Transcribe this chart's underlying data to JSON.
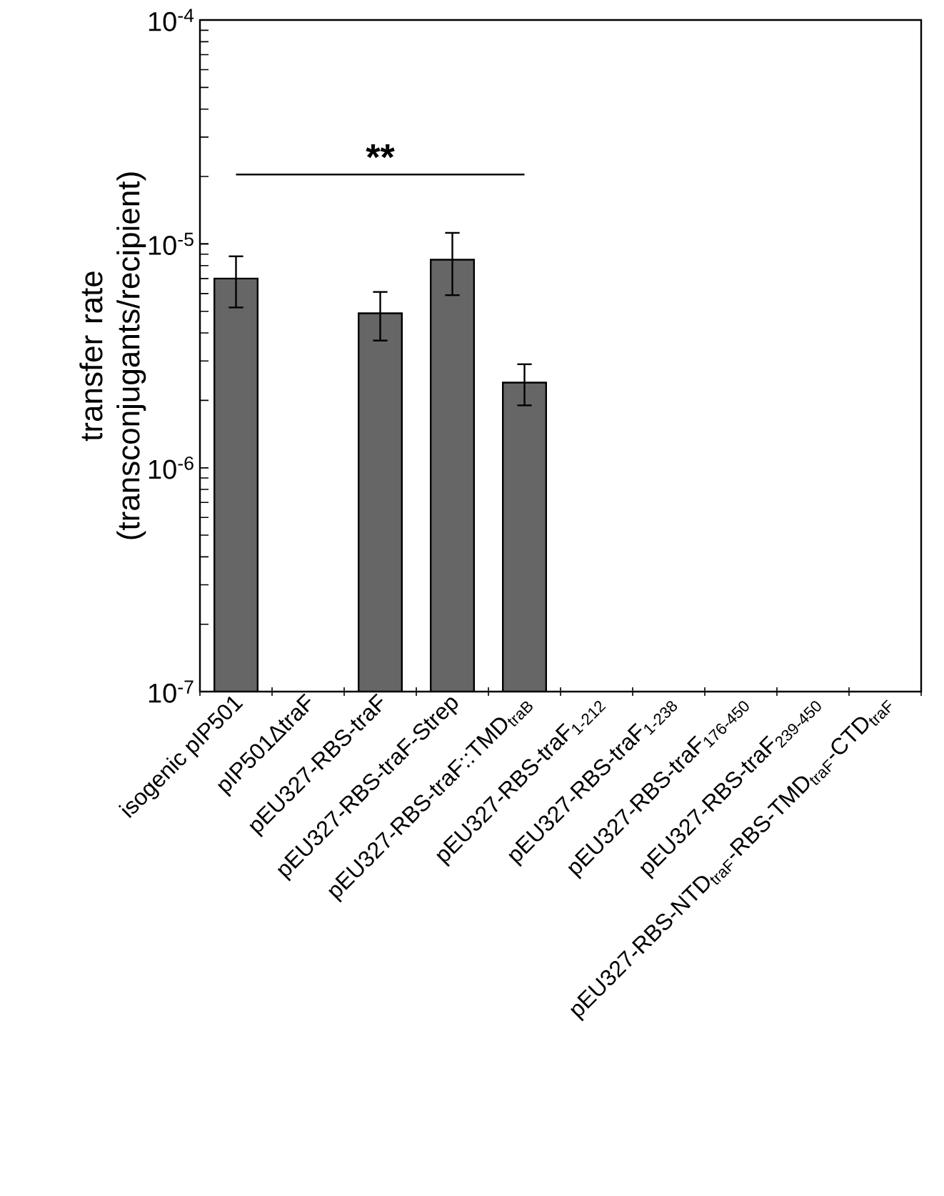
{
  "chart_data": {
    "type": "bar",
    "ylabel": "transfer rate (transconjugants/recipient)",
    "categories": [
      "isogenic pIP501",
      "pIP501ΔtraF",
      "pEU327-RBS-traF",
      "pEU327-RBS-traF-Strep",
      "pEU327-RBS-traF::TMD$_{traB}$",
      "pEU327-RBS-traF$_{1-212}$",
      "pEU327-RBS-traF$_{1-238}$",
      "pEU327-RBS-traF$_{176-450}$",
      "pEU327-RBS-traF$_{239-450}$",
      "pEU327-RBS-NTD$_{traF}$-RBS-TMD$_{traF}$-CTD$_{traF}$"
    ],
    "values": [
      7e-06,
      null,
      4.9e-06,
      8.5e-06,
      2.4e-06,
      null,
      null,
      null,
      null,
      null
    ],
    "errors": [
      [
        5.2e-06,
        8.8e-06
      ],
      null,
      [
        3.7e-06,
        6.1e-06
      ],
      [
        5.9e-06,
        1.12e-05
      ],
      [
        1.9e-06,
        2.9e-06
      ],
      null,
      null,
      null,
      null,
      null
    ],
    "color": "#666666",
    "log": true,
    "ylim": [
      1e-07,
      0.0001
    ],
    "yticks": [
      {
        "value": 1e-07,
        "label": "10$^{-7}$"
      },
      {
        "value": 1e-06,
        "label": "10$^{-6}$"
      },
      {
        "value": 1e-05,
        "label": "10$^{-5}$"
      },
      {
        "value": 0.0001,
        "label": "10$^{-4}$"
      }
    ],
    "annotations": [
      "**"
    ]
  }
}
